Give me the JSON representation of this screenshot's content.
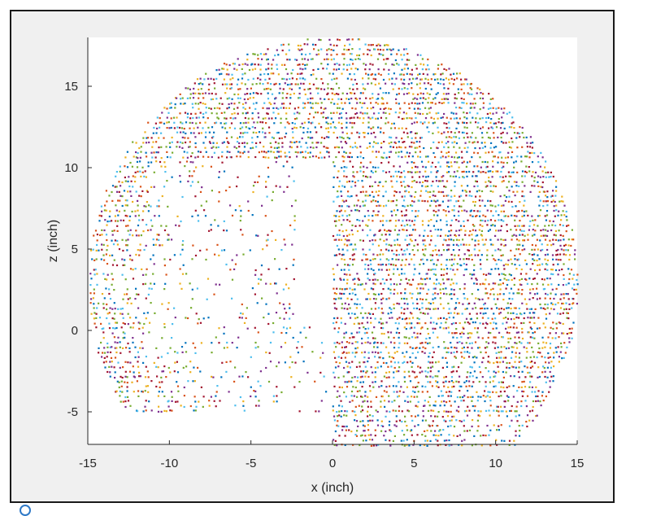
{
  "chart_data": {
    "type": "scatter",
    "title": "",
    "xlabel": "x (inch)",
    "ylabel": "z (inch)",
    "xlim": [
      -15,
      15
    ],
    "ylim": [
      -7,
      18
    ],
    "xticks": [
      -15,
      -10,
      -5,
      0,
      5,
      10,
      15
    ],
    "yticks": [
      -5,
      0,
      5,
      10,
      15
    ],
    "grid": false,
    "legend": "none",
    "series_colors": [
      "#0072bd",
      "#d95319",
      "#edb120",
      "#7e2f8e",
      "#77ac30",
      "#4dbeee",
      "#a2142f"
    ],
    "description_shape": {
      "outer_radius": 15,
      "center": [
        0,
        3
      ],
      "x_values_shown": "-15 to 15",
      "z_values_shown": "-7 to 18",
      "hollow_slot": {
        "x": [
          -2.2,
          0
        ],
        "z": [
          0.5,
          10.2
        ]
      },
      "sparse_region": {
        "x": [
          -15,
          0
        ],
        "z": [
          -5,
          10
        ]
      }
    }
  }
}
